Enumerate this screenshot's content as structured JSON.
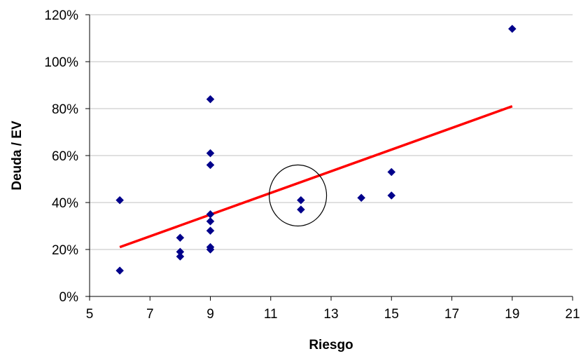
{
  "chart_data": {
    "type": "scatter",
    "title": "",
    "xlabel": "Riesgo",
    "ylabel": "Deuda / EV",
    "xlim": [
      5,
      21
    ],
    "ylim": [
      0,
      1.2
    ],
    "x_ticks": [
      5,
      7,
      9,
      11,
      13,
      15,
      17,
      19,
      21
    ],
    "x_tick_labels": [
      "5",
      "7",
      "9",
      "11",
      "13",
      "15",
      "17",
      "19",
      "21"
    ],
    "y_ticks": [
      0,
      0.2,
      0.4,
      0.6,
      0.8,
      1.0,
      1.2
    ],
    "y_tick_labels": [
      "0%",
      "20%",
      "40%",
      "60%",
      "80%",
      "100%",
      "120%"
    ],
    "grid": "horizontal",
    "legend": "none",
    "marker_color": "#00008B",
    "trendline_color": "#FF0000",
    "series": [
      {
        "points": [
          {
            "x": 6,
            "y": 0.41
          },
          {
            "x": 6,
            "y": 0.11
          },
          {
            "x": 8,
            "y": 0.25
          },
          {
            "x": 8,
            "y": 0.19
          },
          {
            "x": 8,
            "y": 0.17
          },
          {
            "x": 9,
            "y": 0.84
          },
          {
            "x": 9,
            "y": 0.61
          },
          {
            "x": 9,
            "y": 0.56
          },
          {
            "x": 9,
            "y": 0.35
          },
          {
            "x": 9,
            "y": 0.32
          },
          {
            "x": 9,
            "y": 0.28
          },
          {
            "x": 9,
            "y": 0.21
          },
          {
            "x": 9,
            "y": 0.2
          },
          {
            "x": 12,
            "y": 0.41
          },
          {
            "x": 12,
            "y": 0.37
          },
          {
            "x": 14,
            "y": 0.42
          },
          {
            "x": 15,
            "y": 0.53
          },
          {
            "x": 15,
            "y": 0.43
          },
          {
            "x": 19,
            "y": 1.14
          }
        ]
      }
    ],
    "trendline": {
      "type": "linear",
      "x_start": 6,
      "y_start": 0.21,
      "x_end": 19,
      "y_end": 0.81
    },
    "annotation": {
      "type": "ellipse",
      "center_x": 11.9,
      "center_y": 0.43,
      "radius_x": 0.95,
      "radius_y": 0.13
    }
  }
}
